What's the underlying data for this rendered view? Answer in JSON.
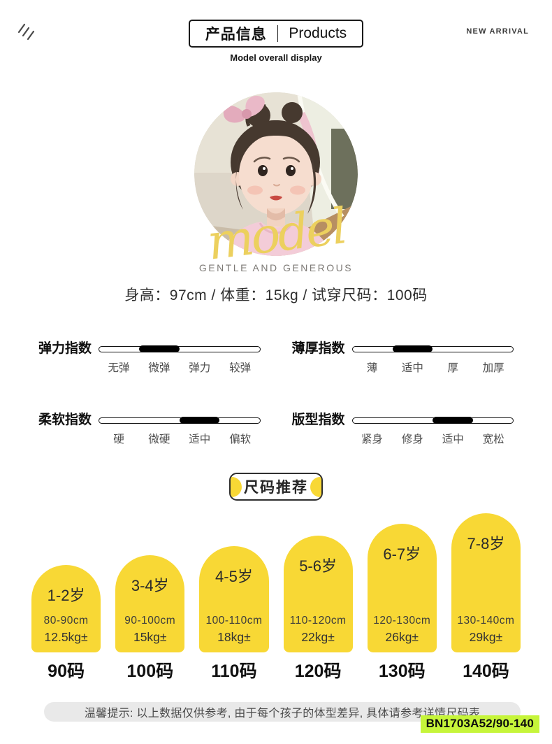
{
  "header": {
    "title_cn": "产品信息",
    "title_en": "Products",
    "subtitle": "Model overall display",
    "corner_label": "NEW ARRIVAL"
  },
  "model": {
    "script_text": "model",
    "tagline": "GENTLE AND GENEROUS",
    "stats": "身高：97cm / 体重：15kg / 试穿尺码：100码"
  },
  "indexes": [
    {
      "title": "弹力指数",
      "labels": [
        "无弹",
        "微弹",
        "弹力",
        "较弹"
      ],
      "active_index": 1
    },
    {
      "title": "薄厚指数",
      "labels": [
        "薄",
        "适中",
        "厚",
        "加厚"
      ],
      "active_index": 1
    },
    {
      "title": "柔软指数",
      "labels": [
        "硬",
        "微硬",
        "适中",
        "偏软"
      ],
      "active_index": 2
    },
    {
      "title": "版型指数",
      "labels": [
        "紧身",
        "修身",
        "适中",
        "宽松"
      ],
      "active_index": 2
    }
  ],
  "size_section": {
    "badge_label": "尺码推荐",
    "sizes": [
      {
        "age": "1-2岁",
        "height": "80-90cm",
        "weight": "12.5kg±",
        "code": "90码"
      },
      {
        "age": "3-4岁",
        "height": "90-100cm",
        "weight": "15kg±",
        "code": "100码"
      },
      {
        "age": "4-5岁",
        "height": "100-110cm",
        "weight": "18kg±",
        "code": "110码"
      },
      {
        "age": "5-6岁",
        "height": "110-120cm",
        "weight": "22kg±",
        "code": "120码"
      },
      {
        "age": "6-7岁",
        "height": "120-130cm",
        "weight": "26kg±",
        "code": "130码"
      },
      {
        "age": "7-8岁",
        "height": "130-140cm",
        "weight": "29kg±",
        "code": "140码"
      }
    ]
  },
  "footer": {
    "notice": "温馨提示: 以上数据仅供参考, 由于每个孩子的体型差异, 具体请参考详情尺码表",
    "sku": "BN1703A52/90-140"
  },
  "colors": {
    "arch_yellow": "#F8D835",
    "script_gold": "#ECD05E",
    "sku_green": "#C6F53A",
    "notice_gray": "#E9E9E9"
  }
}
